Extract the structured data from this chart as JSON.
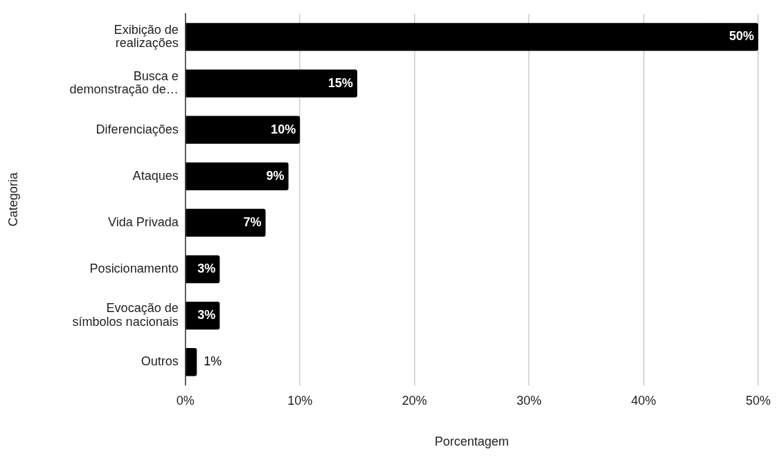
{
  "chart_data": {
    "type": "bar",
    "orientation": "horizontal",
    "xlabel": "Porcentagem",
    "ylabel": "Categoria",
    "categories": [
      "Exibição de realizações",
      "Busca e demonstração de…",
      "Diferenciações",
      "Ataques",
      "Vida Privada",
      "Posicionamento",
      "Evocação de símbolos nacionais",
      "Outros"
    ],
    "values": [
      50,
      15,
      10,
      9,
      7,
      3,
      3,
      1
    ],
    "value_labels": [
      "50%",
      "15%",
      "10%",
      "9%",
      "7%",
      "3%",
      "3%",
      "1%"
    ],
    "color": "#000000",
    "xlim": [
      0,
      50
    ],
    "xticks": [
      {
        "value": 0,
        "label": "0%"
      },
      {
        "value": 10,
        "label": "10%"
      },
      {
        "value": 20,
        "label": "20%"
      },
      {
        "value": 30,
        "label": "30%"
      },
      {
        "value": 40,
        "label": "40%"
      },
      {
        "value": 50,
        "label": "50%"
      }
    ],
    "grid": "x",
    "legend": false
  }
}
